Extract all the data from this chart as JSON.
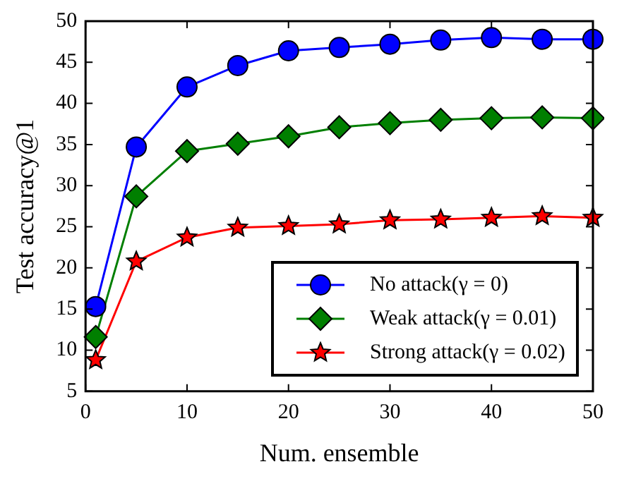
{
  "chart_data": {
    "type": "line",
    "xlabel": "Num. ensemble",
    "ylabel": "Test accuracy@1",
    "x": [
      1,
      5,
      10,
      15,
      20,
      25,
      30,
      35,
      40,
      45,
      50
    ],
    "xlim": [
      0,
      50
    ],
    "xticks": [
      0,
      10,
      20,
      30,
      40,
      50
    ],
    "ylim": [
      5,
      50
    ],
    "yticks": [
      5,
      10,
      15,
      20,
      25,
      30,
      35,
      40,
      45,
      50
    ],
    "grid": false,
    "legend": "bottom right",
    "series": [
      {
        "name": "No attack(γ = 0)",
        "color": "#0000ff",
        "marker": "circle",
        "values": [
          15.3,
          34.7,
          42,
          44.6,
          46.4,
          46.8,
          47.2,
          47.7,
          48,
          47.8,
          47.8
        ]
      },
      {
        "name": "Weak attack(γ = 0.01)",
        "color": "#007f00",
        "marker": "diamond",
        "values": [
          11.6,
          28.7,
          34.2,
          35.1,
          36.0,
          37.1,
          37.6,
          38.0,
          38.2,
          38.3,
          38.2
        ]
      },
      {
        "name": "Strong attack(γ = 0.02)",
        "color": "#ff0000",
        "marker": "star",
        "values": [
          8.8,
          20.8,
          23.7,
          24.9,
          25.1,
          25.3,
          25.8,
          25.9,
          26.1,
          26.3,
          26.1
        ]
      }
    ]
  }
}
